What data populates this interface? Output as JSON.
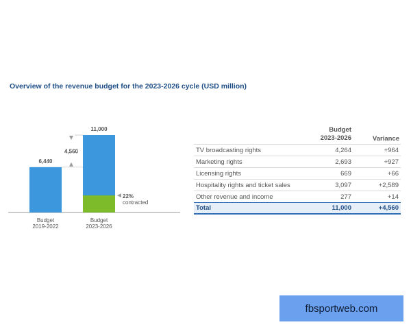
{
  "page": {
    "title": "Overview of the revenue budget for the 2023-2026 cycle (USD million)",
    "watermark": "fbsportweb.com"
  },
  "chart_data": {
    "type": "bar",
    "categories": [
      "Budget 2019-2022",
      "Budget 2023-2026"
    ],
    "category_lines": [
      [
        "Budget",
        "2019-2022"
      ],
      [
        "Budget",
        "2023-2026"
      ]
    ],
    "values": [
      6440,
      11000
    ],
    "value_labels": [
      "6,440",
      "11,000"
    ],
    "increase_label": "4,560",
    "contracted_share": 0.22,
    "contracted_label_lines": [
      "22%",
      "contracted"
    ],
    "ylim": [
      0,
      11000
    ],
    "colors": {
      "bar": "#3d97dc",
      "contracted": "#7dbb2a",
      "arrow": "#9a9a9a",
      "axis": "#999999"
    }
  },
  "table": {
    "header": {
      "budget_lines": [
        "Budget",
        "2023-2026"
      ],
      "variance": "Variance"
    },
    "rows": [
      {
        "label": "TV broadcasting rights",
        "budget": "4,264",
        "variance": "+964"
      },
      {
        "label": "Marketing rights",
        "budget": "2,693",
        "variance": "+927"
      },
      {
        "label": "Licensing rights",
        "budget": "669",
        "variance": "+66"
      },
      {
        "label": "Hospitality rights and ticket sales",
        "budget": "3,097",
        "variance": "+2,589"
      },
      {
        "label": "Other revenue and income",
        "budget": "277",
        "variance": "+14"
      }
    ],
    "total": {
      "label": "Total",
      "budget": "11,000",
      "variance": "+4,560"
    }
  }
}
